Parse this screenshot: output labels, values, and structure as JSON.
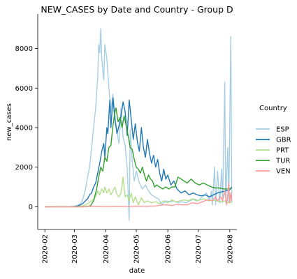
{
  "chart_data": {
    "type": "line",
    "title": "NEW_CASES by Date and Country - Group D",
    "xlabel": "date",
    "ylabel": "new_cases",
    "x_ticks": [
      "2020-02",
      "2020-03",
      "2020-04",
      "2020-05",
      "2020-06",
      "2020-07",
      "2020-08"
    ],
    "x_tick_dates": [
      "2020-02-01",
      "2020-03-01",
      "2020-04-01",
      "2020-05-01",
      "2020-06-01",
      "2020-07-01",
      "2020-08-01"
    ],
    "y_ticks": [
      0,
      2000,
      4000,
      6000,
      8000
    ],
    "xlim": [
      "2020-01-25",
      "2020-08-08"
    ],
    "ylim": [
      -1150,
      9750
    ],
    "grid": false,
    "legend": {
      "title": "Country",
      "placement": "right"
    },
    "series": [
      {
        "name": "ESP",
        "color": "#a6cee3",
        "points": [
          [
            "2020-02-01",
            0
          ],
          [
            "2020-02-25",
            0
          ],
          [
            "2020-03-01",
            30
          ],
          [
            "2020-03-05",
            80
          ],
          [
            "2020-03-08",
            200
          ],
          [
            "2020-03-10",
            500
          ],
          [
            "2020-03-12",
            900
          ],
          [
            "2020-03-14",
            1500
          ],
          [
            "2020-03-16",
            2000
          ],
          [
            "2020-03-18",
            3000
          ],
          [
            "2020-03-20",
            4000
          ],
          [
            "2020-03-22",
            5000
          ],
          [
            "2020-03-24",
            6500
          ],
          [
            "2020-03-25",
            8200
          ],
          [
            "2020-03-26",
            7800
          ],
          [
            "2020-03-27",
            9000
          ],
          [
            "2020-03-28",
            7500
          ],
          [
            "2020-03-30",
            6400
          ],
          [
            "2020-03-31",
            8200
          ],
          [
            "2020-04-02",
            7500
          ],
          [
            "2020-04-04",
            6000
          ],
          [
            "2020-04-06",
            4800
          ],
          [
            "2020-04-08",
            5700
          ],
          [
            "2020-04-10",
            4600
          ],
          [
            "2020-04-12",
            3800
          ],
          [
            "2020-04-14",
            3200
          ],
          [
            "2020-04-16",
            5000
          ],
          [
            "2020-04-18",
            3500
          ],
          [
            "2020-04-20",
            3100
          ],
          [
            "2020-04-22",
            2000
          ],
          [
            "2020-04-24",
            -700
          ],
          [
            "2020-04-25",
            3900
          ],
          [
            "2020-04-27",
            2300
          ],
          [
            "2020-04-29",
            1300
          ],
          [
            "2020-05-01",
            1800
          ],
          [
            "2020-05-04",
            1200
          ],
          [
            "2020-05-07",
            900
          ],
          [
            "2020-05-10",
            1100
          ],
          [
            "2020-05-13",
            800
          ],
          [
            "2020-05-16",
            600
          ],
          [
            "2020-05-19",
            500
          ],
          [
            "2020-05-23",
            400
          ],
          [
            "2020-05-26",
            100
          ],
          [
            "2020-05-30",
            300
          ],
          [
            "2020-06-03",
            250
          ],
          [
            "2020-06-07",
            300
          ],
          [
            "2020-06-11",
            200
          ],
          [
            "2020-06-15",
            250
          ],
          [
            "2020-06-19",
            200
          ],
          [
            "2020-06-23",
            300
          ],
          [
            "2020-06-27",
            400
          ],
          [
            "2020-07-01",
            300
          ],
          [
            "2020-07-05",
            500
          ],
          [
            "2020-07-09",
            700
          ],
          [
            "2020-07-12",
            300
          ],
          [
            "2020-07-14",
            800
          ],
          [
            "2020-07-15",
            100
          ],
          [
            "2020-07-17",
            2000
          ],
          [
            "2020-07-18",
            100
          ],
          [
            "2020-07-20",
            1800
          ],
          [
            "2020-07-22",
            200
          ],
          [
            "2020-07-24",
            1900
          ],
          [
            "2020-07-25",
            200
          ],
          [
            "2020-07-27",
            6300
          ],
          [
            "2020-07-28",
            200
          ],
          [
            "2020-07-30",
            3000
          ],
          [
            "2020-07-31",
            200
          ],
          [
            "2020-08-02",
            8600
          ],
          [
            "2020-08-03",
            200
          ]
        ]
      },
      {
        "name": "GBR",
        "color": "#1f78b4",
        "points": [
          [
            "2020-02-01",
            0
          ],
          [
            "2020-03-01",
            5
          ],
          [
            "2020-03-05",
            50
          ],
          [
            "2020-03-09",
            150
          ],
          [
            "2020-03-12",
            300
          ],
          [
            "2020-03-14",
            400
          ],
          [
            "2020-03-16",
            600
          ],
          [
            "2020-03-18",
            700
          ],
          [
            "2020-03-20",
            1000
          ],
          [
            "2020-03-22",
            1200
          ],
          [
            "2020-03-24",
            1700
          ],
          [
            "2020-03-26",
            2200
          ],
          [
            "2020-03-28",
            2800
          ],
          [
            "2020-03-30",
            3200
          ],
          [
            "2020-03-31",
            2500
          ],
          [
            "2020-04-02",
            4000
          ],
          [
            "2020-04-03",
            3700
          ],
          [
            "2020-04-05",
            5400
          ],
          [
            "2020-04-06",
            4000
          ],
          [
            "2020-04-08",
            5500
          ],
          [
            "2020-04-10",
            4400
          ],
          [
            "2020-04-12",
            3700
          ],
          [
            "2020-04-14",
            4100
          ],
          [
            "2020-04-16",
            4600
          ],
          [
            "2020-04-18",
            5300
          ],
          [
            "2020-04-20",
            4800
          ],
          [
            "2020-04-22",
            3600
          ],
          [
            "2020-04-24",
            5400
          ],
          [
            "2020-04-26",
            4400
          ],
          [
            "2020-04-28",
            3400
          ],
          [
            "2020-04-30",
            4200
          ],
          [
            "2020-05-02",
            3300
          ],
          [
            "2020-05-04",
            2800
          ],
          [
            "2020-05-06",
            4000
          ],
          [
            "2020-05-08",
            3000
          ],
          [
            "2020-05-10",
            2500
          ],
          [
            "2020-05-12",
            3400
          ],
          [
            "2020-05-14",
            2700
          ],
          [
            "2020-05-16",
            2200
          ],
          [
            "2020-05-18",
            2600
          ],
          [
            "2020-05-20",
            2000
          ],
          [
            "2020-05-22",
            2400
          ],
          [
            "2020-05-24",
            1700
          ],
          [
            "2020-05-26",
            1300
          ],
          [
            "2020-05-28",
            1900
          ],
          [
            "2020-05-30",
            1400
          ],
          [
            "2020-06-01",
            1600
          ],
          [
            "2020-06-04",
            1100
          ],
          [
            "2020-06-07",
            1300
          ],
          [
            "2020-06-10",
            900
          ],
          [
            "2020-06-14",
            700
          ],
          [
            "2020-06-18",
            800
          ],
          [
            "2020-06-22",
            600
          ],
          [
            "2020-06-26",
            700
          ],
          [
            "2020-06-30",
            600
          ],
          [
            "2020-07-04",
            550
          ],
          [
            "2020-07-08",
            600
          ],
          [
            "2020-07-12",
            500
          ],
          [
            "2020-07-16",
            600
          ],
          [
            "2020-07-20",
            700
          ],
          [
            "2020-07-24",
            750
          ],
          [
            "2020-07-28",
            800
          ],
          [
            "2020-08-01",
            850
          ],
          [
            "2020-08-03",
            1000
          ]
        ]
      },
      {
        "name": "PRT",
        "color": "#b2df8a",
        "points": [
          [
            "2020-02-01",
            0
          ],
          [
            "2020-03-03",
            0
          ],
          [
            "2020-03-10",
            50
          ],
          [
            "2020-03-14",
            150
          ],
          [
            "2020-03-18",
            300
          ],
          [
            "2020-03-22",
            500
          ],
          [
            "2020-03-24",
            800
          ],
          [
            "2020-03-26",
            600
          ],
          [
            "2020-03-28",
            900
          ],
          [
            "2020-03-30",
            700
          ],
          [
            "2020-03-31",
            1000
          ],
          [
            "2020-04-02",
            700
          ],
          [
            "2020-04-04",
            900
          ],
          [
            "2020-04-06",
            600
          ],
          [
            "2020-04-08",
            800
          ],
          [
            "2020-04-10",
            1000
          ],
          [
            "2020-04-12",
            600
          ],
          [
            "2020-04-14",
            500
          ],
          [
            "2020-04-16",
            700
          ],
          [
            "2020-04-18",
            1500
          ],
          [
            "2020-04-20",
            500
          ],
          [
            "2020-04-22",
            600
          ],
          [
            "2020-04-24",
            300
          ],
          [
            "2020-04-26",
            700
          ],
          [
            "2020-04-28",
            200
          ],
          [
            "2020-04-30",
            500
          ],
          [
            "2020-05-03",
            100
          ],
          [
            "2020-05-06",
            450
          ],
          [
            "2020-05-09",
            200
          ],
          [
            "2020-05-12",
            300
          ],
          [
            "2020-05-16",
            200
          ],
          [
            "2020-05-20",
            250
          ],
          [
            "2020-05-24",
            150
          ],
          [
            "2020-05-28",
            300
          ],
          [
            "2020-06-01",
            200
          ],
          [
            "2020-06-05",
            350
          ],
          [
            "2020-06-09",
            250
          ],
          [
            "2020-06-13",
            300
          ],
          [
            "2020-06-17",
            350
          ],
          [
            "2020-06-21",
            300
          ],
          [
            "2020-06-25",
            400
          ],
          [
            "2020-06-29",
            300
          ],
          [
            "2020-07-03",
            350
          ],
          [
            "2020-07-07",
            400
          ],
          [
            "2020-07-11",
            300
          ],
          [
            "2020-07-15",
            350
          ],
          [
            "2020-07-19",
            300
          ],
          [
            "2020-07-23",
            250
          ],
          [
            "2020-07-27",
            300
          ],
          [
            "2020-07-31",
            200
          ],
          [
            "2020-08-03",
            250
          ]
        ]
      },
      {
        "name": "TUR",
        "color": "#33a02c",
        "points": [
          [
            "2020-02-01",
            0
          ],
          [
            "2020-03-10",
            0
          ],
          [
            "2020-03-14",
            20
          ],
          [
            "2020-03-17",
            50
          ],
          [
            "2020-03-20",
            300
          ],
          [
            "2020-03-23",
            900
          ],
          [
            "2020-03-25",
            1500
          ],
          [
            "2020-03-27",
            2000
          ],
          [
            "2020-03-29",
            1800
          ],
          [
            "2020-03-31",
            2500
          ],
          [
            "2020-04-02",
            2300
          ],
          [
            "2020-04-04",
            3000
          ],
          [
            "2020-04-06",
            3100
          ],
          [
            "2020-04-08",
            4100
          ],
          [
            "2020-04-10",
            4800
          ],
          [
            "2020-04-11",
            5000
          ],
          [
            "2020-04-13",
            4300
          ],
          [
            "2020-04-15",
            4500
          ],
          [
            "2020-04-17",
            4000
          ],
          [
            "2020-04-19",
            4600
          ],
          [
            "2020-04-21",
            4100
          ],
          [
            "2020-04-23",
            3600
          ],
          [
            "2020-04-25",
            3000
          ],
          [
            "2020-04-27",
            2900
          ],
          [
            "2020-04-29",
            2400
          ],
          [
            "2020-05-01",
            2000
          ],
          [
            "2020-05-03",
            1900
          ],
          [
            "2020-05-05",
            1700
          ],
          [
            "2020-05-07",
            2000
          ],
          [
            "2020-05-09",
            1600
          ],
          [
            "2020-05-11",
            1300
          ],
          [
            "2020-05-13",
            1600
          ],
          [
            "2020-05-15",
            1400
          ],
          [
            "2020-05-17",
            1300
          ],
          [
            "2020-05-19",
            1000
          ],
          [
            "2020-05-21",
            1100
          ],
          [
            "2020-05-24",
            1000
          ],
          [
            "2020-05-27",
            900
          ],
          [
            "2020-05-30",
            1000
          ],
          [
            "2020-06-02",
            900
          ],
          [
            "2020-06-05",
            1000
          ],
          [
            "2020-06-08",
            1000
          ],
          [
            "2020-06-11",
            1500
          ],
          [
            "2020-06-14",
            1400
          ],
          [
            "2020-06-17",
            1300
          ],
          [
            "2020-06-20",
            1200
          ],
          [
            "2020-06-24",
            1400
          ],
          [
            "2020-06-28",
            1200
          ],
          [
            "2020-07-02",
            1100
          ],
          [
            "2020-07-06",
            1200
          ],
          [
            "2020-07-10",
            1100
          ],
          [
            "2020-07-14",
            1000
          ],
          [
            "2020-07-18",
            950
          ],
          [
            "2020-07-22",
            950
          ],
          [
            "2020-07-26",
            900
          ],
          [
            "2020-07-30",
            900
          ],
          [
            "2020-08-03",
            950
          ]
        ]
      },
      {
        "name": "VEN",
        "color": "#fb9a99",
        "points": [
          [
            "2020-02-01",
            0
          ],
          [
            "2020-03-13",
            0
          ],
          [
            "2020-03-15",
            20
          ],
          [
            "2020-03-20",
            10
          ],
          [
            "2020-03-25",
            20
          ],
          [
            "2020-04-01",
            10
          ],
          [
            "2020-04-10",
            20
          ],
          [
            "2020-04-20",
            10
          ],
          [
            "2020-05-01",
            30
          ],
          [
            "2020-05-10",
            20
          ],
          [
            "2020-05-20",
            40
          ],
          [
            "2020-05-25",
            80
          ],
          [
            "2020-06-01",
            100
          ],
          [
            "2020-06-05",
            60
          ],
          [
            "2020-06-10",
            120
          ],
          [
            "2020-06-15",
            90
          ],
          [
            "2020-06-20",
            100
          ],
          [
            "2020-06-25",
            200
          ],
          [
            "2020-06-30",
            150
          ],
          [
            "2020-07-05",
            250
          ],
          [
            "2020-07-10",
            350
          ],
          [
            "2020-07-15",
            300
          ],
          [
            "2020-07-18",
            500
          ],
          [
            "2020-07-20",
            300
          ],
          [
            "2020-07-23",
            500
          ],
          [
            "2020-07-25",
            300
          ],
          [
            "2020-07-27",
            800
          ],
          [
            "2020-07-29",
            100
          ],
          [
            "2020-07-31",
            1200
          ],
          [
            "2020-08-01",
            200
          ],
          [
            "2020-08-02",
            700
          ],
          [
            "2020-08-03",
            300
          ]
        ]
      }
    ]
  }
}
